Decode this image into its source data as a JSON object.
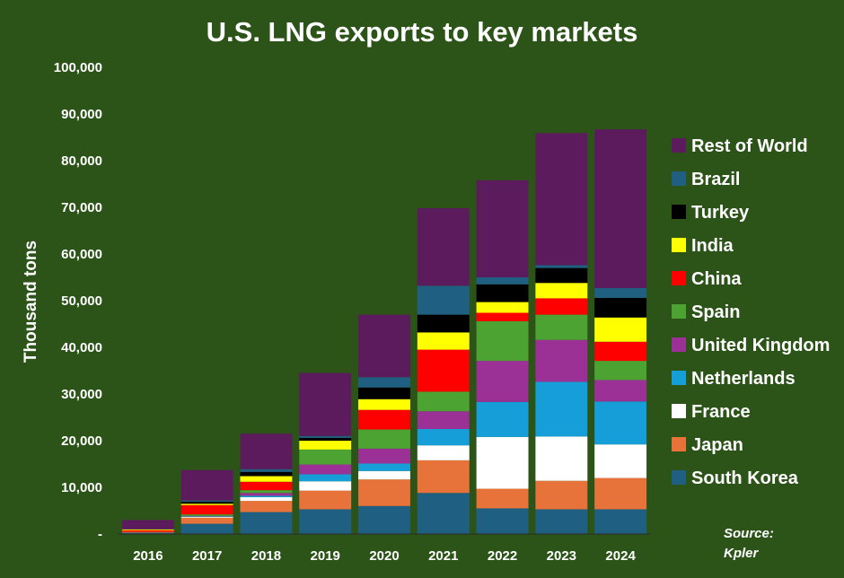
{
  "chart_data": {
    "type": "bar",
    "stacked": true,
    "title": "U.S. LNG exports to key markets",
    "xlabel": "",
    "ylabel": "Thousand tons",
    "ylim": [
      0,
      100000
    ],
    "yticks": [
      "-",
      "10,000",
      "20,000",
      "30,000",
      "40,000",
      "50,000",
      "60,000",
      "70,000",
      "80,000",
      "90,000",
      "100,000"
    ],
    "categories": [
      "2016",
      "2017",
      "2018",
      "2019",
      "2020",
      "2021",
      "2022",
      "2023",
      "2024"
    ],
    "grid": false,
    "legend_position": "right",
    "series": [
      {
        "name": "South Korea",
        "color": "#1f5f82",
        "values": [
          300,
          2200,
          4700,
          5300,
          6000,
          8800,
          5500,
          5300,
          5300
        ]
      },
      {
        "name": "Japan",
        "color": "#e8733a",
        "values": [
          200,
          1300,
          2400,
          4000,
          5700,
          7000,
          4200,
          6100,
          6700
        ]
      },
      {
        "name": "France",
        "color": "#ffffff",
        "values": [
          0,
          200,
          800,
          2000,
          1800,
          3200,
          11100,
          9500,
          7200
        ]
      },
      {
        "name": "Netherlands",
        "color": "#159ed8",
        "values": [
          0,
          100,
          300,
          1500,
          1600,
          3500,
          7500,
          11700,
          9200
        ]
      },
      {
        "name": "United Kingdom",
        "color": "#9b3096",
        "values": [
          0,
          100,
          600,
          2100,
          3200,
          3800,
          8800,
          9000,
          4600
        ]
      },
      {
        "name": "Spain",
        "color": "#4da332",
        "values": [
          0,
          300,
          600,
          3200,
          4100,
          4200,
          8500,
          5400,
          4100
        ]
      },
      {
        "name": "China",
        "color": "#ff0000",
        "values": [
          300,
          2000,
          1800,
          0,
          4200,
          9000,
          1800,
          3500,
          4100
        ]
      },
      {
        "name": "India",
        "color": "#ffff00",
        "values": [
          200,
          300,
          1200,
          1900,
          2300,
          3700,
          2300,
          3300,
          5200
        ]
      },
      {
        "name": "Turkey",
        "color": "#000000",
        "values": [
          0,
          400,
          900,
          600,
          2500,
          3800,
          3800,
          3200,
          4200
        ]
      },
      {
        "name": "Brazil",
        "color": "#1f5f82",
        "values": [
          0,
          300,
          600,
          400,
          2200,
          6200,
          1500,
          600,
          2100
        ]
      },
      {
        "name": "Rest of World",
        "color": "#5b1b5d",
        "values": [
          2000,
          6500,
          7600,
          13500,
          13400,
          16600,
          20800,
          28300,
          34000
        ]
      }
    ],
    "source_label": "Source:",
    "source_name": "Kpler"
  }
}
